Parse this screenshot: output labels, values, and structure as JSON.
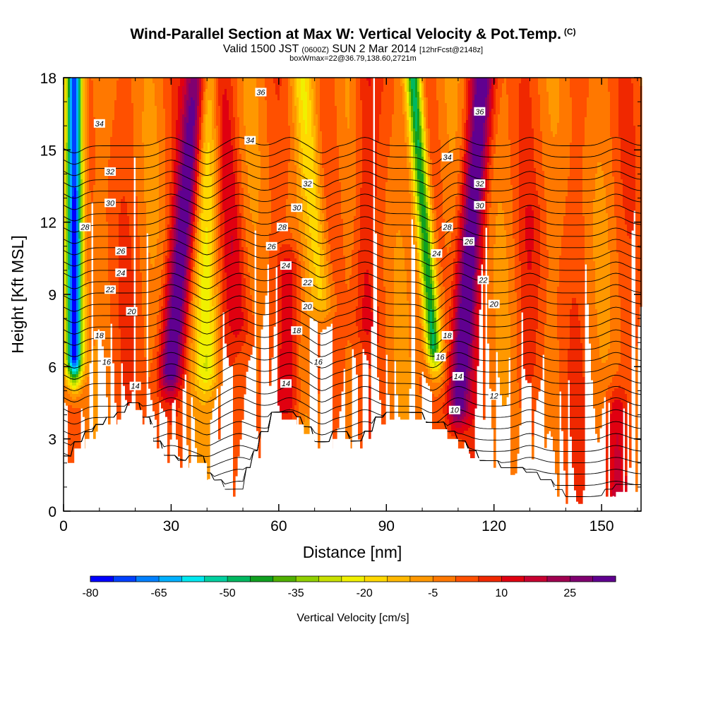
{
  "title": {
    "main": "Wind-Parallel Section at Max W: Vertical Velocity & Pot.Temp.",
    "copyright": "(C)",
    "valid_a": "Valid 1500 JST",
    "valid_b": "(0600Z)",
    "valid_c": "SUN 2 Mar 2014",
    "valid_d": "[12hrFcst@2148z]",
    "box": "boxWmax=22@36.79,138.60,2721m"
  },
  "chart_data": {
    "type": "heatmap",
    "xlabel": "Distance [nm]",
    "ylabel": "Height [Kft MSL]",
    "xlim": [
      0,
      161
    ],
    "ylim": [
      0,
      18
    ],
    "xticks": [
      0,
      30,
      60,
      90,
      120,
      150
    ],
    "yticks": [
      0,
      3,
      6,
      9,
      12,
      15,
      18
    ],
    "grid": false,
    "colorbar": {
      "label": "Vertical Velocity [cm/s]",
      "min": -80,
      "max": 35,
      "step": 5,
      "tick_values": [
        -80,
        -65,
        -50,
        -35,
        -20,
        -5,
        10,
        25
      ],
      "colors": [
        "#0000ff",
        "#0040ff",
        "#0080ff",
        "#00b0ff",
        "#00e8f0",
        "#00d0a0",
        "#00b860",
        "#10a020",
        "#50b000",
        "#90d000",
        "#c8e000",
        "#f0f000",
        "#ffd800",
        "#ffb800",
        "#ff9800",
        "#ff7800",
        "#ff5000",
        "#f02800",
        "#e00010",
        "#c80030",
        "#a00050",
        "#800070",
        "#600090"
      ]
    },
    "updrafts": [
      {
        "x": 30,
        "z_min": 6.0,
        "z_max": 18,
        "peak_cm_s": 35,
        "tilt": 0.6
      },
      {
        "x": 49,
        "z_min": 8.0,
        "z_max": 18,
        "peak_cm_s": 10,
        "tilt": -0.5
      },
      {
        "x": 63,
        "z_min": 4.8,
        "z_max": 10.0,
        "peak_cm_s": 15,
        "tilt": 0.0
      },
      {
        "x": 84,
        "z_min": 8.0,
        "z_max": 18,
        "peak_cm_s": 10,
        "tilt": 0.0
      },
      {
        "x": 110,
        "z_min": 4.5,
        "z_max": 18,
        "peak_cm_s": 35,
        "tilt": 0.5
      },
      {
        "x": 130,
        "z_min": 6.0,
        "z_max": 12.0,
        "peak_cm_s": 5,
        "tilt": 0.0
      },
      {
        "x": 154,
        "z_min": 0.8,
        "z_max": 4.0,
        "peak_cm_s": 15,
        "tilt": 0.0
      }
    ],
    "downdrafts": [
      {
        "x": 3,
        "z_min": 6.5,
        "z_max": 18,
        "peak_cm_s": -80,
        "tilt": 0.0
      },
      {
        "x": 40,
        "z_min": 6.0,
        "z_max": 18,
        "peak_cm_s": -20,
        "tilt": 0.0
      },
      {
        "x": 72,
        "z_min": 9.0,
        "z_max": 18,
        "peak_cm_s": -20,
        "tilt": -0.6
      },
      {
        "x": 103,
        "z_min": 7.0,
        "z_max": 18,
        "peak_cm_s": -50,
        "tilt": -0.5
      }
    ],
    "terrain": {
      "x": [
        0,
        3,
        3,
        6,
        6,
        9,
        9,
        12,
        12,
        15,
        15,
        18,
        18,
        22,
        22,
        25,
        25,
        28,
        28,
        32,
        32,
        35,
        35,
        40,
        40,
        42,
        42,
        45,
        45,
        51,
        51,
        53,
        53,
        55,
        55,
        58,
        58,
        61,
        61,
        65,
        65,
        67,
        67,
        70,
        70,
        75,
        75,
        80,
        80,
        84,
        84,
        87,
        87,
        90,
        90,
        93,
        93,
        101,
        101,
        107,
        107,
        110,
        110,
        113,
        113,
        116,
        116,
        122,
        122,
        129,
        129,
        133,
        133,
        137,
        137,
        140,
        140,
        151,
        151,
        154,
        154,
        161
      ],
      "z": [
        2.0,
        2.0,
        2.6,
        2.6,
        3.0,
        3.0,
        3.3,
        3.3,
        3.6,
        3.6,
        3.8,
        3.8,
        4.2,
        4.2,
        3.6,
        3.6,
        2.6,
        2.6,
        2.0,
        2.0,
        1.8,
        1.8,
        2.0,
        2.0,
        1.3,
        1.3,
        1.0,
        1.0,
        0.6,
        0.6,
        1.5,
        1.5,
        2.2,
        2.2,
        3.0,
        3.0,
        3.8,
        3.8,
        3.8,
        3.8,
        3.6,
        3.6,
        3.2,
        3.2,
        2.6,
        2.6,
        3.0,
        3.0,
        2.6,
        2.6,
        3.0,
        3.0,
        3.6,
        3.6,
        3.8,
        3.8,
        3.8,
        3.8,
        3.4,
        3.4,
        3.0,
        3.0,
        2.6,
        2.6,
        2.2,
        2.2,
        1.8,
        1.8,
        1.5,
        1.5,
        1.3,
        1.3,
        1.0,
        1.0,
        0.6,
        0.6,
        0.3,
        0.3,
        0.6,
        0.6,
        0.8,
        0.8
      ]
    },
    "theta_contours": [
      {
        "level": 10,
        "label_x": 109,
        "label_z": 4.2
      },
      {
        "level": 12,
        "label_x": 120,
        "label_z": 4.8
      },
      {
        "level": 14,
        "label_x": 20,
        "label_z": 5.2
      },
      {
        "level": 14,
        "label_x": 62,
        "label_z": 5.3
      },
      {
        "level": 14,
        "label_x": 110,
        "label_z": 5.6
      },
      {
        "level": 16,
        "label_x": 12,
        "label_z": 6.2
      },
      {
        "level": 16,
        "label_x": 71,
        "label_z": 6.2
      },
      {
        "level": 16,
        "label_x": 105,
        "label_z": 6.4
      },
      {
        "level": 18,
        "label_x": 10,
        "label_z": 7.3
      },
      {
        "level": 18,
        "label_x": 65,
        "label_z": 7.5
      },
      {
        "level": 18,
        "label_x": 107,
        "label_z": 7.3
      },
      {
        "level": 20,
        "label_x": 19,
        "label_z": 8.3
      },
      {
        "level": 20,
        "label_x": 68,
        "label_z": 8.5
      },
      {
        "level": 20,
        "label_x": 120,
        "label_z": 8.6
      },
      {
        "level": 22,
        "label_x": 13,
        "label_z": 9.2
      },
      {
        "level": 22,
        "label_x": 68,
        "label_z": 9.5
      },
      {
        "level": 22,
        "label_x": 117,
        "label_z": 9.6
      },
      {
        "level": 24,
        "label_x": 16,
        "label_z": 9.9
      },
      {
        "level": 24,
        "label_x": 62,
        "label_z": 10.2
      },
      {
        "level": 24,
        "label_x": 104,
        "label_z": 10.7
      },
      {
        "level": 26,
        "label_x": 16,
        "label_z": 10.8
      },
      {
        "level": 26,
        "label_x": 58,
        "label_z": 11.0
      },
      {
        "level": 26,
        "label_x": 113,
        "label_z": 11.2
      },
      {
        "level": 28,
        "label_x": 6,
        "label_z": 11.8
      },
      {
        "level": 28,
        "label_x": 61,
        "label_z": 11.8
      },
      {
        "level": 28,
        "label_x": 107,
        "label_z": 11.8
      },
      {
        "level": 30,
        "label_x": 13,
        "label_z": 12.8
      },
      {
        "level": 30,
        "label_x": 65,
        "label_z": 12.6
      },
      {
        "level": 30,
        "label_x": 116,
        "label_z": 12.7
      },
      {
        "level": 32,
        "label_x": 13,
        "label_z": 14.1
      },
      {
        "level": 32,
        "label_x": 68,
        "label_z": 13.6
      },
      {
        "level": 32,
        "label_x": 116,
        "label_z": 13.6
      },
      {
        "level": 34,
        "label_x": 10,
        "label_z": 16.1
      },
      {
        "level": 34,
        "label_x": 52,
        "label_z": 15.4
      },
      {
        "level": 34,
        "label_x": 107,
        "label_z": 14.7
      },
      {
        "level": 36,
        "label_x": 55,
        "label_z": 17.4
      },
      {
        "level": 36,
        "label_x": 116,
        "label_z": 16.6
      }
    ]
  }
}
